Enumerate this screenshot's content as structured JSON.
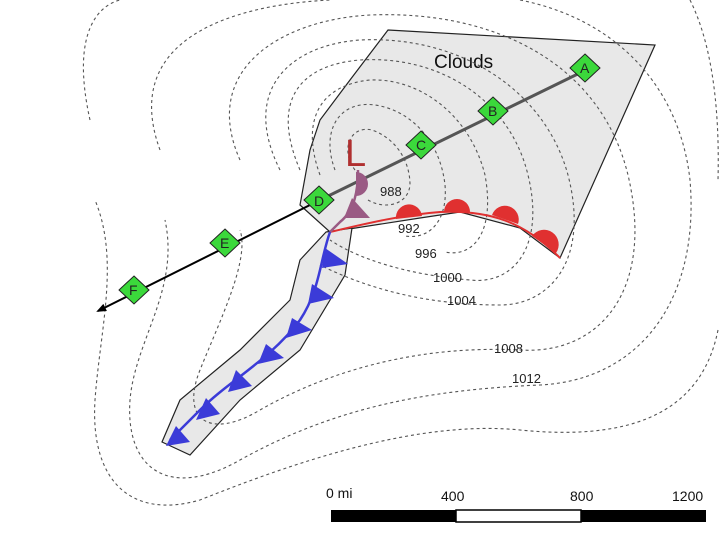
{
  "map": {
    "clouds_label": "Clouds",
    "low_symbol": "L",
    "isobars": [
      {
        "label": "988"
      },
      {
        "label": "992"
      },
      {
        "label": "996"
      },
      {
        "label": "1000"
      },
      {
        "label": "1004"
      },
      {
        "label": "1008"
      },
      {
        "label": "1012"
      }
    ],
    "stations": [
      "A",
      "B",
      "C",
      "D",
      "E",
      "F"
    ],
    "scale": {
      "labels": [
        "0 mi",
        "400",
        "800",
        "1200"
      ]
    },
    "colors": {
      "cloud": "#e8e8e8",
      "cold_front": "#3b3bd8",
      "warm_front": "#e03030",
      "occluded_front": "#9a5a84",
      "station": "#3bd83b",
      "low": "#b03030"
    }
  }
}
